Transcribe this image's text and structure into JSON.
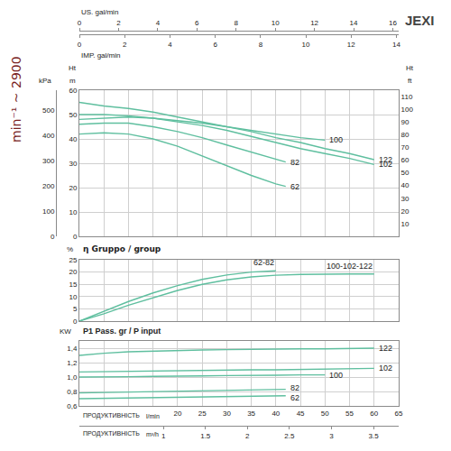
{
  "chart_data": [
    {
      "type": "line",
      "title": "JEXI",
      "subtitle": "min⁻¹ ~ 2900",
      "ylabel": "Ht",
      "yunit": "m",
      "ylim": [
        0,
        60
      ],
      "yticks": [
        0,
        10,
        20,
        30,
        40,
        50,
        60
      ],
      "xlim": [
        0,
        65
      ],
      "xticks": [
        20,
        25,
        30,
        35,
        40,
        45,
        50,
        55,
        60,
        65
      ],
      "grid": true,
      "tick_labels": "y",
      "y2": {
        "label": "Ht",
        "unit": "ft",
        "lim": [
          0,
          115
        ],
        "ticks": [
          10,
          20,
          30,
          40,
          50,
          60,
          70,
          80,
          90,
          100,
          110
        ]
      },
      "y3": {
        "unit": "kPa",
        "lim": [
          0,
          580
        ],
        "ticks": [
          0,
          100,
          200,
          300,
          400,
          500
        ]
      },
      "x2": {
        "label": "US. gal/min",
        "lim": [
          0,
          16.3
        ],
        "ticks": [
          0,
          2,
          4,
          6,
          8,
          10,
          12,
          14,
          16
        ]
      },
      "x3": {
        "label": "IMP. gal/min",
        "lim": [
          0,
          14.1
        ],
        "ticks": [
          0,
          2,
          4,
          6,
          8,
          10,
          12,
          14
        ]
      },
      "series": [
        {
          "name": "122",
          "color": "#5fbf9f",
          "x": [
            0,
            5,
            10,
            15,
            20,
            25,
            30,
            35,
            40,
            45,
            50,
            55,
            60
          ],
          "values": [
            55,
            53.5,
            52.5,
            51,
            49,
            47,
            45,
            43,
            40.5,
            38.5,
            36,
            34,
            31.5
          ]
        },
        {
          "name": "102",
          "color": "#5fbf9f",
          "x": [
            0,
            5,
            10,
            15,
            20,
            25,
            30,
            35,
            40,
            45,
            50,
            55,
            60
          ],
          "values": [
            50,
            50,
            49.5,
            48.5,
            47,
            45.5,
            43.5,
            41,
            38.5,
            36,
            34,
            32,
            29.5
          ]
        },
        {
          "name": "100",
          "color": "#5fbf9f",
          "x": [
            0,
            5,
            10,
            15,
            20,
            25,
            30,
            35,
            40,
            45,
            50
          ],
          "values": [
            48,
            48.5,
            49,
            48.5,
            47.5,
            46.5,
            45,
            43.5,
            42,
            40.5,
            39.5
          ]
        },
        {
          "name": "82",
          "color": "#5fbf9f",
          "x": [
            0,
            5,
            10,
            15,
            20,
            25,
            30,
            35,
            40,
            42
          ],
          "values": [
            46,
            46.5,
            46.5,
            45,
            43,
            40.5,
            37.5,
            34.5,
            31.5,
            30.5
          ]
        },
        {
          "name": "62",
          "color": "#5fbf9f",
          "x": [
            0,
            5,
            10,
            15,
            20,
            25,
            30,
            35,
            40,
            42
          ],
          "values": [
            42,
            42.5,
            42,
            40,
            37,
            33,
            29,
            25,
            21.5,
            20.5
          ]
        }
      ]
    },
    {
      "type": "line",
      "title": "η Gruppo / group",
      "yunit": "%",
      "ylim": [
        0,
        25
      ],
      "yticks": [
        0,
        5,
        10,
        15,
        20,
        25
      ],
      "xlim": [
        0,
        65
      ],
      "xticks": [
        20,
        25,
        30,
        35,
        40,
        45,
        50,
        55,
        60,
        65
      ],
      "grid": true,
      "tick_labels": "y",
      "series": [
        {
          "name": "62-82",
          "color": "#5fbf9f",
          "x": [
            0,
            5,
            10,
            15,
            20,
            25,
            30,
            35,
            40
          ],
          "values": [
            0,
            4,
            8,
            11.5,
            14.5,
            17,
            18.8,
            20,
            20.5
          ]
        },
        {
          "name": "100-102-122",
          "color": "#5fbf9f",
          "x": [
            0,
            5,
            10,
            15,
            20,
            25,
            30,
            35,
            40,
            45,
            50,
            55,
            60
          ],
          "values": [
            0,
            3,
            6.5,
            9.5,
            12.5,
            15,
            16.8,
            18,
            18.7,
            19,
            19.2,
            19.2,
            19.2
          ]
        }
      ]
    },
    {
      "type": "line",
      "title": "P1 Pass. gr / P input",
      "yunit": "KW",
      "ylim": [
        0.6,
        1.5
      ],
      "yticks": [
        {
          "value": 0.6,
          "label": "0,6"
        },
        {
          "value": 0.8,
          "label": "0,8"
        },
        {
          "value": 1.0,
          "label": "1,0"
        },
        {
          "value": 1.2,
          "label": "1,2"
        },
        {
          "value": 1.4,
          "label": "1,4"
        }
      ],
      "xlabel": "ПРОДУКТИВНІСТЬ",
      "xunit": "l/min",
      "xlim": [
        0,
        65
      ],
      "xticks": [
        20,
        25,
        30,
        35,
        40,
        45,
        50,
        55,
        60,
        65
      ],
      "grid": true,
      "x2": {
        "label": "ПРОДУКТИВНІСТЬ",
        "unit": "m³/h",
        "lim": [
          0,
          3.8
        ],
        "ticks": [
          1,
          1.5,
          2,
          2.5,
          3,
          3.5
        ]
      },
      "series": [
        {
          "name": "122",
          "color": "#5fbf9f",
          "x": [
            0,
            5,
            10,
            15,
            20,
            25,
            30,
            35,
            40,
            45,
            50,
            55,
            60
          ],
          "values": [
            1.3,
            1.33,
            1.35,
            1.36,
            1.37,
            1.375,
            1.38,
            1.385,
            1.39,
            1.39,
            1.39,
            1.395,
            1.4
          ]
        },
        {
          "name": "102",
          "color": "#5fbf9f",
          "x": [
            0,
            5,
            10,
            15,
            20,
            25,
            30,
            35,
            40,
            45,
            50,
            55,
            60
          ],
          "values": [
            1.07,
            1.075,
            1.08,
            1.085,
            1.09,
            1.09,
            1.095,
            1.1,
            1.1,
            1.105,
            1.11,
            1.115,
            1.12
          ]
        },
        {
          "name": "100",
          "color": "#5fbf9f",
          "x": [
            0,
            5,
            10,
            15,
            20,
            25,
            30,
            35,
            40,
            45,
            50
          ],
          "values": [
            1.0,
            1.0,
            1.005,
            1.01,
            1.01,
            1.015,
            1.02,
            1.02,
            1.025,
            1.03,
            1.03
          ]
        },
        {
          "name": "82",
          "color": "#5fbf9f",
          "x": [
            0,
            5,
            10,
            15,
            20,
            25,
            30,
            35,
            40,
            42
          ],
          "values": [
            0.78,
            0.785,
            0.79,
            0.795,
            0.8,
            0.81,
            0.815,
            0.82,
            0.825,
            0.83
          ]
        },
        {
          "name": "62",
          "color": "#5fbf9f",
          "x": [
            0,
            5,
            10,
            15,
            20,
            25,
            30,
            35,
            40,
            42
          ],
          "values": [
            0.7,
            0.705,
            0.71,
            0.715,
            0.72,
            0.725,
            0.73,
            0.735,
            0.74,
            0.74
          ]
        }
      ]
    }
  ]
}
